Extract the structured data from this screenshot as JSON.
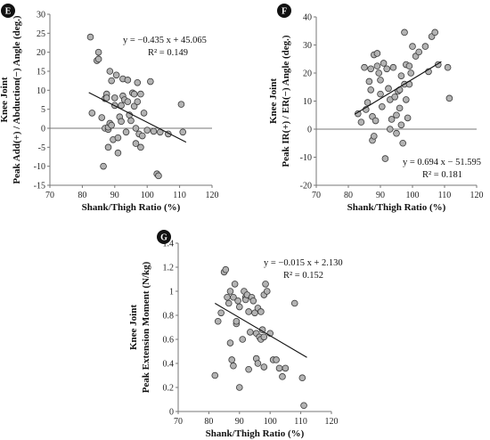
{
  "chart_data": [
    {
      "panel": "E",
      "type": "scatter",
      "xlabel": "Shank/Thigh Ratio (%)",
      "ylabel_lines": [
        "Knee Joint",
        "Peak Add(+) / Abduction(−) Angle (deg.)"
      ],
      "xlim": [
        70,
        120
      ],
      "ylim": [
        -15,
        30
      ],
      "xticks": [
        70,
        80,
        90,
        100,
        110,
        120
      ],
      "yticks": [
        -15,
        -10,
        -5,
        0,
        5,
        10,
        15,
        20,
        25,
        30
      ],
      "grid": false,
      "equation": "y = −0.435 x + 45.065",
      "r2": "R² = 0.149",
      "trend": {
        "slope": -0.435,
        "intercept": 45.065,
        "x_range": [
          82,
          112
        ]
      },
      "points": [
        [
          82.5,
          24
        ],
        [
          83,
          4
        ],
        [
          84.5,
          17.8
        ],
        [
          85,
          18.2
        ],
        [
          85,
          20
        ],
        [
          86,
          2.8
        ],
        [
          86.5,
          -10
        ],
        [
          87,
          0
        ],
        [
          87,
          7.8
        ],
        [
          87.5,
          9
        ],
        [
          87.5,
          8
        ],
        [
          88,
          -0.3
        ],
        [
          88,
          0.3
        ],
        [
          88,
          -5
        ],
        [
          88.5,
          15
        ],
        [
          88.5,
          1.3
        ],
        [
          89,
          12.5
        ],
        [
          89,
          0.8
        ],
        [
          89.5,
          -3
        ],
        [
          90,
          8
        ],
        [
          90,
          6
        ],
        [
          90.5,
          14
        ],
        [
          91,
          -2.5
        ],
        [
          91,
          -6.5
        ],
        [
          91.5,
          3
        ],
        [
          92,
          6
        ],
        [
          92,
          1.8
        ],
        [
          92.5,
          13
        ],
        [
          92.5,
          8.5
        ],
        [
          93,
          7.5
        ],
        [
          93.5,
          -1
        ],
        [
          94,
          12.7
        ],
        [
          94,
          7
        ],
        [
          94.5,
          3.5
        ],
        [
          95,
          2
        ],
        [
          95.5,
          9.3
        ],
        [
          96,
          5.8
        ],
        [
          96,
          9
        ],
        [
          96.5,
          -4
        ],
        [
          96.5,
          0
        ],
        [
          97,
          7
        ],
        [
          97,
          12
        ],
        [
          97.5,
          -1.5
        ],
        [
          98,
          9
        ],
        [
          98,
          -5
        ],
        [
          98.5,
          -2
        ],
        [
          99,
          4
        ],
        [
          100,
          -0.5
        ],
        [
          101,
          12.3
        ],
        [
          102,
          -0.8
        ],
        [
          103,
          -12
        ],
        [
          103.5,
          -12.5
        ],
        [
          104,
          -1
        ],
        [
          106.5,
          -1.5
        ],
        [
          110.5,
          6.3
        ],
        [
          111,
          -1
        ]
      ]
    },
    {
      "panel": "F",
      "type": "scatter",
      "xlabel": "Shank/Thigh Ratio (%)",
      "ylabel_lines": [
        "Knee Joint",
        "Peak IR(+) / ER(−) Angle (deg.)"
      ],
      "xlim": [
        70,
        120
      ],
      "ylim": [
        -20,
        40
      ],
      "xticks": [
        70,
        80,
        90,
        100,
        110,
        120
      ],
      "yticks": [
        -20,
        -10,
        0,
        10,
        20,
        30,
        40
      ],
      "grid": false,
      "equation": "y = 0.694 x − 51.595",
      "r2": "R² = 0.181",
      "trend": {
        "slope": 0.694,
        "intercept": -51.595,
        "x_range": [
          82,
          109
        ]
      },
      "points": [
        [
          83,
          5.5
        ],
        [
          84,
          2.5
        ],
        [
          85,
          22
        ],
        [
          85.5,
          7
        ],
        [
          86,
          9.5
        ],
        [
          86.5,
          17
        ],
        [
          87,
          21.5
        ],
        [
          87,
          14
        ],
        [
          87.5,
          4.5
        ],
        [
          87.5,
          -4
        ],
        [
          88,
          -2.5
        ],
        [
          88,
          26.5
        ],
        [
          88.5,
          3
        ],
        [
          89,
          27
        ],
        [
          89,
          22.5
        ],
        [
          89.5,
          20
        ],
        [
          90,
          12.5
        ],
        [
          90,
          17.5
        ],
        [
          90.5,
          8
        ],
        [
          91,
          23.5
        ],
        [
          91.5,
          -10.5
        ],
        [
          92,
          21.5
        ],
        [
          92.5,
          14.5
        ],
        [
          93,
          0
        ],
        [
          93,
          10.5
        ],
        [
          93.5,
          3.5
        ],
        [
          94,
          22
        ],
        [
          94.5,
          11.5
        ],
        [
          95,
          -1.5
        ],
        [
          95,
          5
        ],
        [
          95.5,
          13.5
        ],
        [
          96,
          7.5
        ],
        [
          96,
          14
        ],
        [
          96.5,
          19
        ],
        [
          96.5,
          1.5
        ],
        [
          97,
          -5
        ],
        [
          97.5,
          16
        ],
        [
          97.5,
          34.5
        ],
        [
          98,
          10.5
        ],
        [
          98,
          23
        ],
        [
          98.5,
          4
        ],
        [
          99,
          22.5
        ],
        [
          99,
          16
        ],
        [
          99.5,
          20
        ],
        [
          100,
          29.5
        ],
        [
          101,
          26
        ],
        [
          102,
          27.5
        ],
        [
          104,
          29.5
        ],
        [
          105,
          20.5
        ],
        [
          106,
          33
        ],
        [
          107,
          34.5
        ],
        [
          108,
          23
        ],
        [
          111,
          22
        ],
        [
          111.5,
          11
        ]
      ]
    },
    {
      "panel": "G",
      "type": "scatter",
      "xlabel": "Shank/Thigh Ratio (%)",
      "ylabel_lines": [
        "Knee Joint",
        "Peak Extension Moment (N/kg)"
      ],
      "xlim": [
        70,
        120
      ],
      "ylim": [
        0,
        1.4
      ],
      "xticks": [
        70,
        80,
        90,
        100,
        110,
        120
      ],
      "yticks": [
        0,
        0.2,
        0.4,
        0.6,
        0.8,
        1,
        1.2,
        1.4
      ],
      "ytick_labels": [
        "0",
        "0.2",
        "0.4",
        "0.6",
        "0.8",
        "1",
        "1.2",
        "1.4"
      ],
      "grid": false,
      "equation": "y = −0.015 x + 2.130",
      "r2": "R² = 0.152",
      "trend": {
        "slope": -0.015,
        "intercept": 2.13,
        "x_range": [
          82,
          112
        ]
      },
      "points": [
        [
          82,
          0.3
        ],
        [
          83,
          0.75
        ],
        [
          84,
          0.82
        ],
        [
          85,
          1.16
        ],
        [
          85.5,
          1.18
        ],
        [
          86,
          0.95
        ],
        [
          86.5,
          0.9
        ],
        [
          87,
          1.0
        ],
        [
          87,
          0.57
        ],
        [
          87.5,
          0.43
        ],
        [
          88,
          0.95
        ],
        [
          88,
          0.38
        ],
        [
          88.5,
          1.06
        ],
        [
          89,
          0.73
        ],
        [
          89,
          0.75
        ],
        [
          89.5,
          0.92
        ],
        [
          90,
          0.2
        ],
        [
          90,
          0.87
        ],
        [
          91,
          0.6
        ],
        [
          91.5,
          1.0
        ],
        [
          92,
          0.95
        ],
        [
          92,
          0.93
        ],
        [
          92.5,
          0.97
        ],
        [
          93,
          0.35
        ],
        [
          93,
          0.83
        ],
        [
          93.5,
          0.66
        ],
        [
          94,
          0.95
        ],
        [
          94.5,
          0.92
        ],
        [
          95,
          0.82
        ],
        [
          95.5,
          0.65
        ],
        [
          95.5,
          0.44
        ],
        [
          96,
          0.4
        ],
        [
          96,
          0.86
        ],
        [
          96.5,
          0.62
        ],
        [
          97,
          0.83
        ],
        [
          97,
          0.6
        ],
        [
          97.5,
          0.68
        ],
        [
          98,
          0.62
        ],
        [
          98,
          0.97
        ],
        [
          98,
          0.37
        ],
        [
          98.5,
          1.06
        ],
        [
          99,
          1.0
        ],
        [
          100,
          0.65
        ],
        [
          101,
          0.43
        ],
        [
          102,
          0.43
        ],
        [
          103,
          0.36
        ],
        [
          104,
          0.29
        ],
        [
          105,
          0.36
        ],
        [
          108,
          0.9
        ],
        [
          110.5,
          0.28
        ],
        [
          111,
          0.05
        ]
      ]
    }
  ]
}
